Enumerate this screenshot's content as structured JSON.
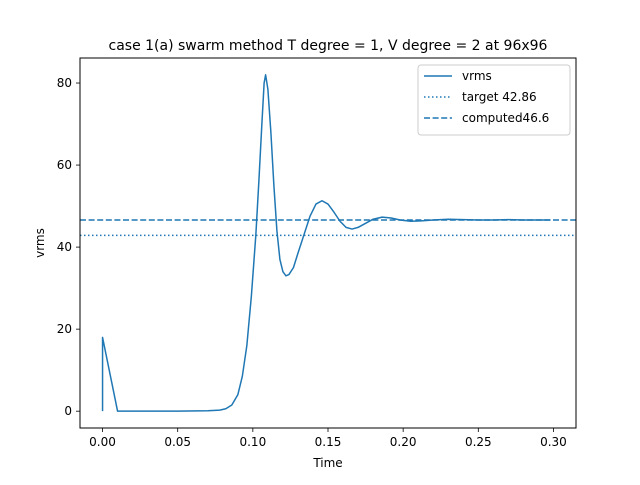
{
  "chart_data": {
    "type": "line",
    "title": "case 1(a) swarm method T degree = 1, V degree = 2 at 96x96",
    "xlabel": "Time",
    "ylabel": "vrms",
    "xlim": [
      -0.015,
      0.315
    ],
    "ylim": [
      -4.1,
      86.1
    ],
    "xticks": [
      0.0,
      0.05,
      0.1,
      0.15,
      0.2,
      0.25,
      0.3
    ],
    "xtick_labels": [
      "0.00",
      "0.05",
      "0.10",
      "0.15",
      "0.20",
      "0.25",
      "0.30"
    ],
    "yticks": [
      0,
      20,
      40,
      60,
      80
    ],
    "ytick_labels": [
      "0",
      "20",
      "40",
      "60",
      "80"
    ],
    "grid": false,
    "legend_position": "top-right",
    "series": [
      {
        "name": "vrms",
        "style": "solid",
        "color": "#1f77b4",
        "points": [
          [
            0.0,
            0.0
          ],
          [
            0.0,
            18.0
          ],
          [
            0.01,
            0.0
          ],
          [
            0.03,
            0.0
          ],
          [
            0.05,
            0.0
          ],
          [
            0.07,
            0.1
          ],
          [
            0.078,
            0.25
          ],
          [
            0.082,
            0.6
          ],
          [
            0.086,
            1.5
          ],
          [
            0.09,
            4.0
          ],
          [
            0.093,
            8.5
          ],
          [
            0.096,
            16.0
          ],
          [
            0.099,
            28.0
          ],
          [
            0.102,
            43.0
          ],
          [
            0.104,
            56.0
          ],
          [
            0.106,
            70.0
          ],
          [
            0.1075,
            80.0
          ],
          [
            0.1085,
            82.0
          ],
          [
            0.11,
            78.5
          ],
          [
            0.112,
            68.0
          ],
          [
            0.114,
            55.0
          ],
          [
            0.116,
            44.0
          ],
          [
            0.118,
            37.0
          ],
          [
            0.12,
            34.0
          ],
          [
            0.122,
            33.0
          ],
          [
            0.124,
            33.3
          ],
          [
            0.127,
            35.0
          ],
          [
            0.13,
            38.5
          ],
          [
            0.134,
            43.0
          ],
          [
            0.138,
            47.5
          ],
          [
            0.142,
            50.5
          ],
          [
            0.146,
            51.3
          ],
          [
            0.15,
            50.5
          ],
          [
            0.154,
            48.5
          ],
          [
            0.158,
            46.3
          ],
          [
            0.162,
            44.8
          ],
          [
            0.166,
            44.4
          ],
          [
            0.17,
            44.8
          ],
          [
            0.175,
            45.8
          ],
          [
            0.18,
            46.8
          ],
          [
            0.186,
            47.3
          ],
          [
            0.192,
            47.1
          ],
          [
            0.198,
            46.6
          ],
          [
            0.205,
            46.3
          ],
          [
            0.212,
            46.4
          ],
          [
            0.22,
            46.6
          ],
          [
            0.23,
            46.8
          ],
          [
            0.24,
            46.7
          ],
          [
            0.25,
            46.6
          ],
          [
            0.26,
            46.6
          ],
          [
            0.27,
            46.7
          ],
          [
            0.28,
            46.6
          ],
          [
            0.29,
            46.6
          ],
          [
            0.298,
            46.6
          ]
        ]
      },
      {
        "name": "target 42.86",
        "style": "dotted",
        "color": "#1f77b4",
        "y": 42.86
      },
      {
        "name": "computed46.6",
        "style": "dashed",
        "color": "#1f77b4",
        "y": 46.6
      }
    ]
  }
}
